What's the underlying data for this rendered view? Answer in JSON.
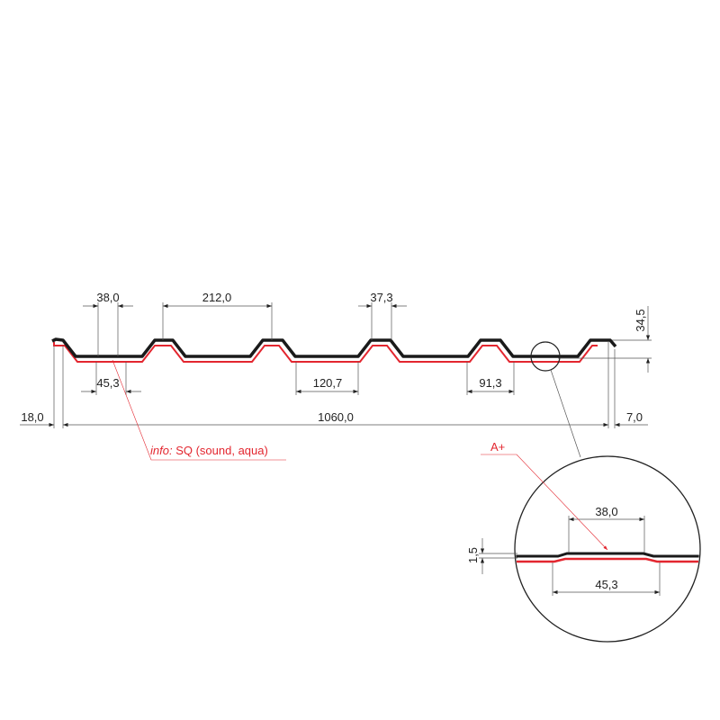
{
  "colors": {
    "profile": "#1a1a1a",
    "coating": "#e3262f",
    "dimension": "#555555"
  },
  "dimensions": {
    "crest_top": "38,0",
    "pitch": "212,0",
    "crest_top_2": "37,3",
    "crest_bottom": "45,3",
    "trough": "120,7",
    "trough_2": "91,3",
    "left_edge": "18,0",
    "width": "1060,0",
    "right_edge": "7,0",
    "height": "34,5"
  },
  "info_label": {
    "prefix": "info:",
    "text": "SQ (sound, aqua)"
  },
  "detail": {
    "label": "A+",
    "top_width": "38,0",
    "bottom_width": "45,3",
    "rib_height": "1,5"
  }
}
